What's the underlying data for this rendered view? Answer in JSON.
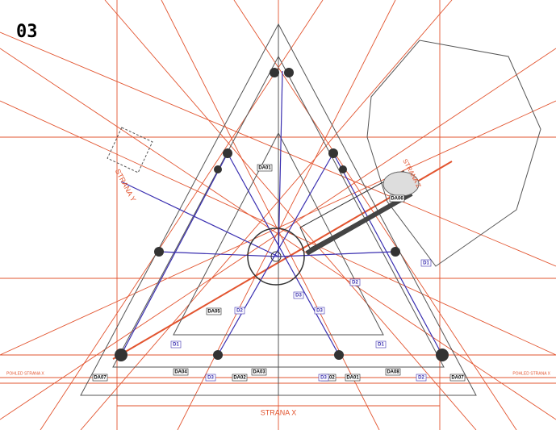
{
  "page_number": "03",
  "labels": {
    "strana_x": "STRANA X",
    "strana_y": "STRANA Y",
    "strana_z": "STRANA Z",
    "view_left": "POHLED STRANA X",
    "view_right": "POHLED STRANA X"
  },
  "tags": [
    "DA01",
    "DA06",
    "DA05",
    "DA07",
    "DA04",
    "DA02",
    "DA03",
    "DA02",
    "DA01",
    "DA08",
    "DA07"
  ],
  "beam_tags": [
    "D1",
    "D2",
    "D3",
    "D1",
    "D3",
    "D2",
    "D1",
    "D3",
    "D2",
    "D3"
  ]
}
